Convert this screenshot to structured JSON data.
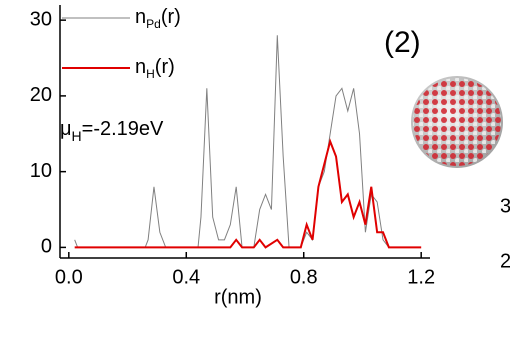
{
  "chart_data": {
    "type": "line",
    "xlabel": "r(nm)",
    "xlim": [
      -0.03,
      1.23
    ],
    "ylim": [
      -1.4,
      32
    ],
    "xticks": [
      {
        "value": 0,
        "label": "0.0"
      },
      0.4,
      0.8,
      1.2
    ],
    "yticks": [
      0,
      10,
      20,
      30
    ],
    "series": [
      {
        "name": [
          "n",
          "Pd",
          "(r)"
        ],
        "color": "#808080",
        "x": [
          0.02,
          0.03,
          0.26,
          0.27,
          0.29,
          0.31,
          0.33,
          0.44,
          0.45,
          0.47,
          0.49,
          0.51,
          0.53,
          0.55,
          0.57,
          0.59,
          0.63,
          0.65,
          0.67,
          0.69,
          0.71,
          0.73,
          0.75,
          0.79,
          0.81,
          0.83,
          0.85,
          0.87,
          0.89,
          0.91,
          0.93,
          0.95,
          0.97,
          0.99,
          1.01,
          1.03,
          1.05,
          1.07,
          1.09
        ],
        "values": [
          1,
          0,
          0,
          1,
          8,
          2,
          0,
          0,
          4,
          21,
          4,
          1,
          1,
          3,
          8,
          0,
          0,
          5,
          7,
          5,
          28,
          12,
          0,
          0,
          2,
          1,
          8,
          10,
          15,
          20,
          21,
          18,
          21,
          15,
          2,
          7,
          6,
          1,
          0
        ]
      },
      {
        "name": [
          "n",
          "H",
          "(r)"
        ],
        "color": "#e00000",
        "x": [
          0.02,
          0.55,
          0.57,
          0.59,
          0.63,
          0.65,
          0.67,
          0.71,
          0.73,
          0.79,
          0.81,
          0.83,
          0.85,
          0.87,
          0.89,
          0.91,
          0.93,
          0.95,
          0.97,
          0.99,
          1.01,
          1.03,
          1.05,
          1.07,
          1.09,
          1.2
        ],
        "values": [
          0,
          0,
          1,
          0,
          0,
          1,
          0,
          1,
          0,
          0,
          3,
          1,
          8,
          11,
          14,
          12,
          6,
          7,
          4,
          6,
          3,
          8,
          2,
          2,
          0,
          0
        ]
      }
    ],
    "annotations": [
      [
        "μ",
        "H",
        "=-2.19eV"
      ],
      "(2)",
      "3",
      "2"
    ]
  }
}
